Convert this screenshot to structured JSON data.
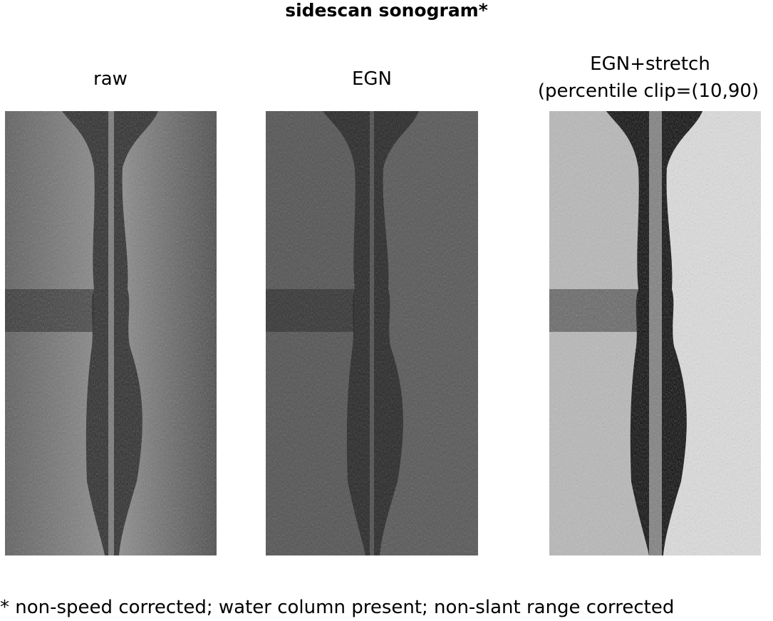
{
  "figure": {
    "title": "sidescan sonogram*",
    "footnote": "* non-speed corrected; water column present; non-slant range corrected"
  },
  "panels": [
    {
      "title": "raw",
      "style": "raw",
      "track_color": "#2b2b2b",
      "bed_color": "#6a6a6a"
    },
    {
      "title": "EGN",
      "style": "egn",
      "track_color": "#242424",
      "bed_color": "#525252"
    },
    {
      "title_line1": "EGN+stretch",
      "title_line2": "(percentile clip=(10,90)",
      "style": "stretch",
      "track_color": "#080808",
      "bed_color": "#cfcfcf"
    }
  ]
}
